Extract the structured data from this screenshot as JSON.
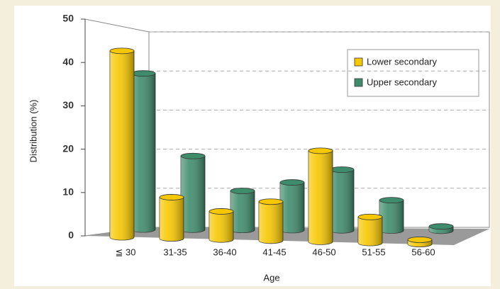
{
  "chart_data": {
    "type": "bar3d",
    "x_label": "Age",
    "y_label": "Distribution (%)",
    "categories": [
      "≦ 30",
      "31-35",
      "36-40",
      "41-45",
      "46-50",
      "51-55",
      "56-60"
    ],
    "series": [
      {
        "name": "Lower secondary",
        "color": "#f7c800",
        "values": [
          43,
          9.5,
          6.5,
          9,
          21,
          6,
          1
        ]
      },
      {
        "name": "Upper secondary",
        "color": "#3f8c6c",
        "values": [
          36,
          17,
          9,
          11,
          14,
          7,
          1
        ]
      }
    ],
    "ylim": [
      0,
      50
    ],
    "yticks": [
      0,
      10,
      20,
      30,
      40,
      50
    ],
    "grid": true,
    "legend": "top-right"
  }
}
